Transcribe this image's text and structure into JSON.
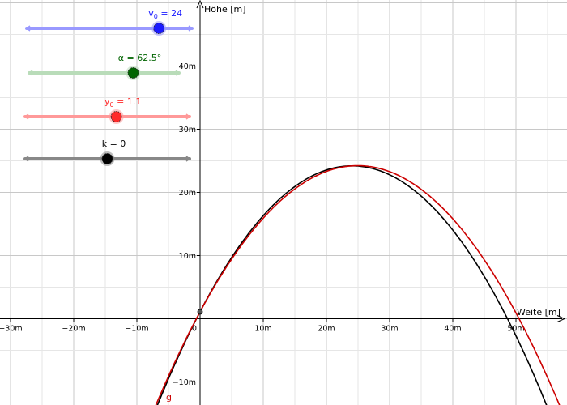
{
  "axes": {
    "x_label": "Weite [m]",
    "y_label": "Höhe [m]",
    "x_ticks": [
      {
        "value": -30,
        "label": "−30m"
      },
      {
        "value": -20,
        "label": "−20m"
      },
      {
        "value": -10,
        "label": "−10m"
      },
      {
        "value": 0,
        "label": "0"
      },
      {
        "value": 10,
        "label": "10m"
      },
      {
        "value": 20,
        "label": "20m"
      },
      {
        "value": 30,
        "label": "30m"
      },
      {
        "value": 40,
        "label": "40m"
      },
      {
        "value": 50,
        "label": "50m"
      }
    ],
    "y_ticks": [
      {
        "value": -10,
        "label": "−10m"
      },
      {
        "value": 10,
        "label": "10m"
      },
      {
        "value": 20,
        "label": "20m"
      },
      {
        "value": 30,
        "label": "30m"
      },
      {
        "value": 40,
        "label": "40m"
      }
    ]
  },
  "sliders": [
    {
      "name": "v0",
      "label_main": "v",
      "label_sub": "0",
      "label_rest": " = 24",
      "value": 24,
      "min": 0,
      "max": 30,
      "color": "#1a1aff",
      "light": "#9999ff"
    },
    {
      "name": "alpha",
      "label_main": "α = 62.5°",
      "label_sub": "",
      "label_rest": "",
      "value": 62.5,
      "min": 0,
      "max": 90,
      "color": "#006400",
      "light": "#b9dcb9"
    },
    {
      "name": "y0",
      "label_main": "y",
      "label_sub": "0",
      "label_rest": " = 1.1",
      "value": 1.1,
      "min": -10,
      "max": 10,
      "color": "#ff2a2a",
      "light": "#ff9999"
    },
    {
      "name": "k",
      "label_main": "k = 0",
      "label_sub": "",
      "label_rest": "",
      "value": 0,
      "min": -0.5,
      "max": 0.5,
      "color": "#000000",
      "light": "#888888"
    }
  ],
  "curves": {
    "ideal_color": "#000000",
    "drag_color": "#cc0000",
    "drag_label": "g",
    "gravity": 9.81,
    "drag_height_factor": 0.965
  },
  "launch_point": {
    "x": 0,
    "y": 1.1
  }
}
